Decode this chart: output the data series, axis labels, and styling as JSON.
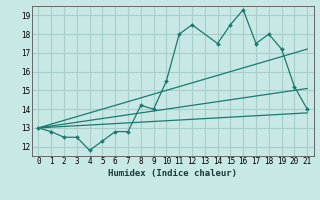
{
  "xlabel": "Humidex (Indice chaleur)",
  "xlim": [
    -0.5,
    21.5
  ],
  "ylim": [
    11.5,
    19.5
  ],
  "xticks": [
    0,
    1,
    2,
    3,
    4,
    5,
    6,
    7,
    8,
    9,
    10,
    11,
    12,
    13,
    14,
    15,
    16,
    17,
    18,
    19,
    20,
    21
  ],
  "yticks": [
    12,
    13,
    14,
    15,
    16,
    17,
    18,
    19
  ],
  "bg_color": "#c8e8e5",
  "grid_color": "#a8ceca",
  "line_color": "#1a7a6e",
  "line1_x": [
    0,
    1,
    2,
    3,
    4,
    5,
    6,
    7,
    8,
    9,
    10,
    11,
    12,
    14,
    15,
    16,
    17,
    18,
    19,
    20,
    21
  ],
  "line1_y": [
    13.0,
    12.8,
    12.5,
    12.5,
    11.8,
    12.3,
    12.8,
    12.8,
    14.2,
    14.0,
    15.5,
    18.0,
    18.5,
    17.5,
    18.5,
    19.3,
    17.5,
    18.0,
    17.2,
    15.2,
    14.0
  ],
  "line2_x": [
    0,
    21
  ],
  "line2_y": [
    13.0,
    17.2
  ],
  "line3_x": [
    0,
    21
  ],
  "line3_y": [
    13.0,
    15.1
  ],
  "line4_x": [
    0,
    21
  ],
  "line4_y": [
    13.0,
    13.8
  ]
}
